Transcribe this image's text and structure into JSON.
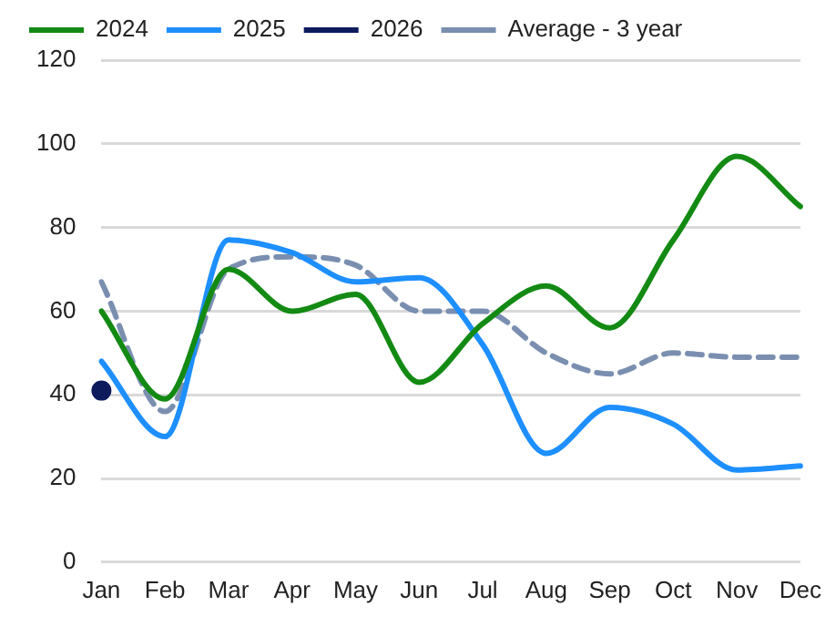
{
  "chart_data": {
    "type": "line",
    "categories": [
      "Jan",
      "Feb",
      "Mar",
      "Apr",
      "May",
      "Jun",
      "Jul",
      "Aug",
      "Sep",
      "Oct",
      "Nov",
      "Dec"
    ],
    "series": [
      {
        "name": "2024",
        "color": "#138a13",
        "marker": "none",
        "line_style": "solid",
        "values": [
          60,
          39,
          70,
          60,
          64,
          43,
          57,
          66,
          56,
          77,
          97,
          85
        ]
      },
      {
        "name": "2025",
        "color": "#1e8fff",
        "marker": "none",
        "line_style": "solid",
        "values": [
          48,
          30,
          77,
          74,
          67,
          68,
          52,
          26,
          37,
          33,
          22,
          23
        ]
      },
      {
        "name": "2026",
        "color": "#0d1a5c",
        "marker": "circle",
        "line_style": "solid",
        "values": [
          41,
          null,
          null,
          null,
          null,
          null,
          null,
          null,
          null,
          null,
          null,
          null
        ]
      },
      {
        "name": "Average - 3 year",
        "color": "#7a8fb0",
        "marker": "none",
        "line_style": "dashed",
        "values": [
          67,
          36,
          70,
          73,
          71,
          60,
          60,
          50,
          45,
          50,
          49,
          49
        ]
      }
    ],
    "ylim": [
      0,
      120
    ],
    "yticks": [
      0,
      20,
      40,
      60,
      80,
      100,
      120
    ],
    "grid": "y",
    "legend": "top"
  }
}
